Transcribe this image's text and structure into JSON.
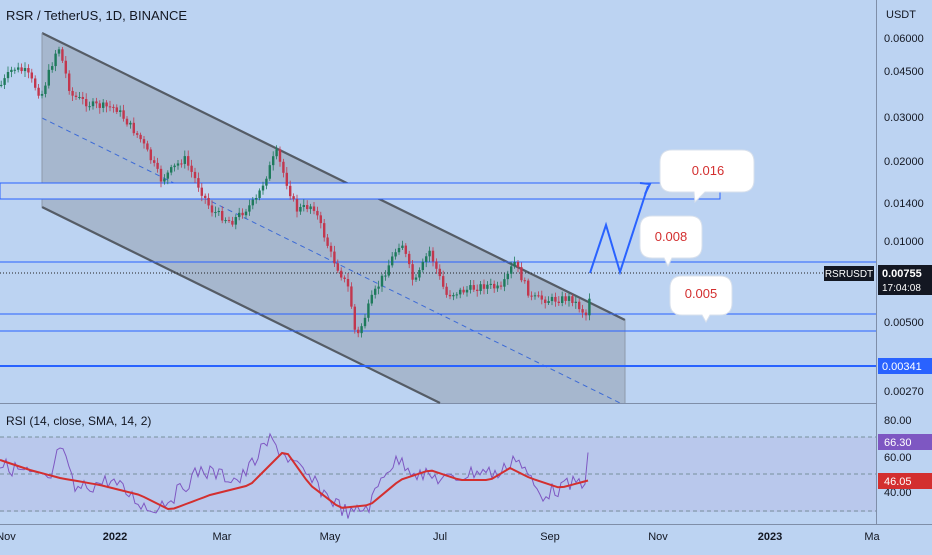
{
  "header": {
    "title": "RSR / TetherUS, 1D, BINANCE"
  },
  "price_axis": {
    "unit": "USDT",
    "ticks": [
      "0.06000",
      "0.04500",
      "0.03000",
      "0.02000",
      "0.01400",
      "0.01000",
      "0.00500",
      "0.00270"
    ]
  },
  "price_badges": {
    "symbol": "RSRUSDT",
    "last_price": "0.00755",
    "countdown": "17:04:08",
    "support": "0.00341"
  },
  "callouts": [
    {
      "label": "0.016"
    },
    {
      "label": "0.008"
    },
    {
      "label": "0.005"
    }
  ],
  "rsi": {
    "title": "RSI (14, close, SMA, 14, 2)",
    "ticks": [
      "80.00",
      "60.00",
      "40.00"
    ],
    "rsi_value": "66.30",
    "sma_value": "46.05"
  },
  "time_axis": {
    "labels": [
      "Nov",
      "2022",
      "Mar",
      "May",
      "Jul",
      "Sep",
      "Nov",
      "2023",
      "Ma"
    ]
  },
  "colors": {
    "background": "#bcd3f2",
    "channel_fill": "#a6b7ce",
    "up_candle": "#1f7a5c",
    "down_candle": "#c2374e",
    "level_line": "#2962ff",
    "rsi_line": "#7e57c2",
    "rsi_sma": "#d32f2f",
    "callout_text": "#d32f2f"
  }
}
